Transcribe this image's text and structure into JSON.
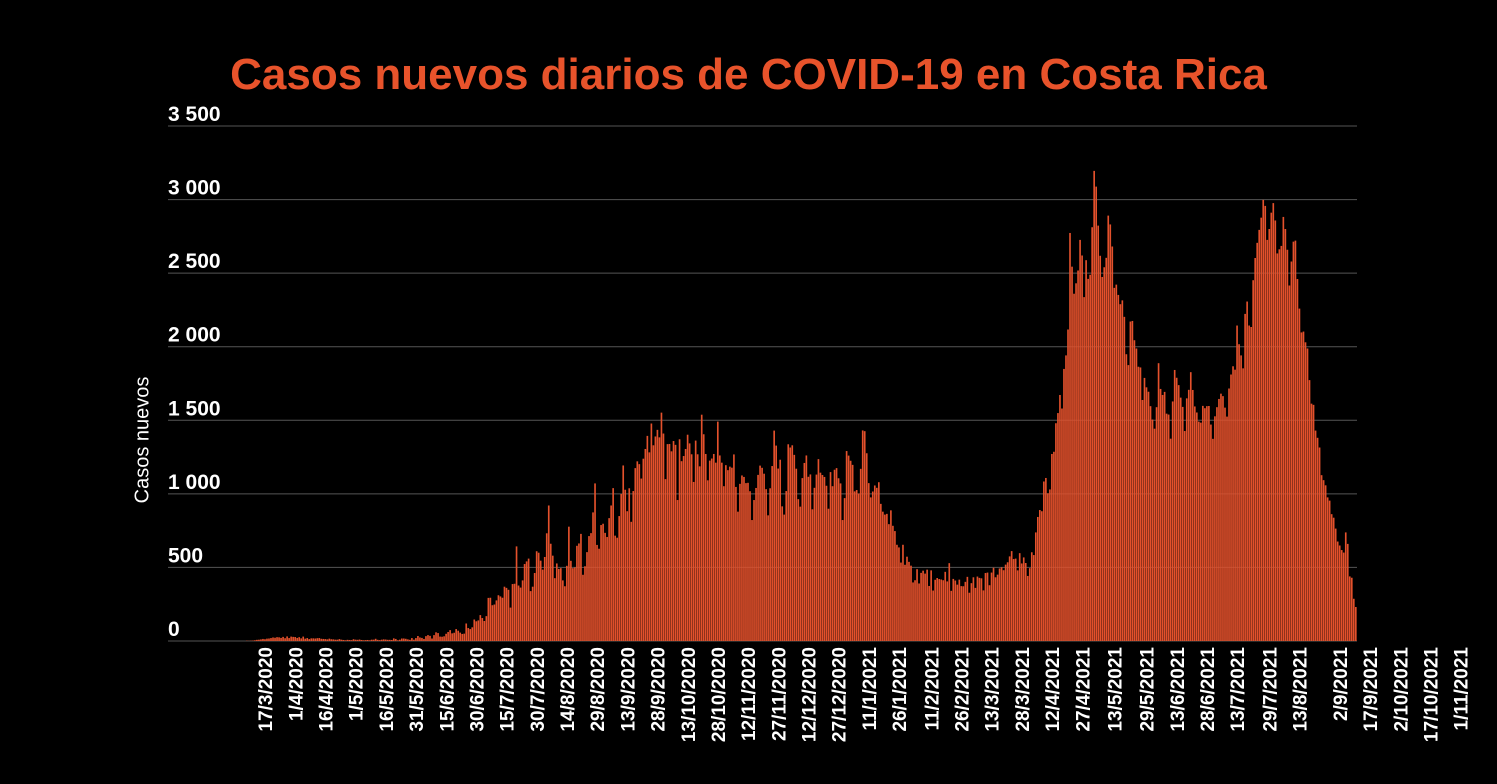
{
  "colors": {
    "background": "#000000",
    "accent": "#e8532b",
    "bar": "#e4512c",
    "grid": "#555555",
    "text": "#ffffff"
  },
  "chart_data": {
    "type": "bar",
    "title": "Casos nuevos diarios de COVID-19 en Costa Rica",
    "xlabel": "",
    "ylabel": "Casos nuevos",
    "ylim": [
      0,
      3500
    ],
    "y_ticks": [
      0,
      500,
      1000,
      1500,
      2000,
      2500,
      3000,
      3500
    ],
    "y_tick_labels": [
      "0",
      "500",
      "1 000",
      "1 500",
      "2 000",
      "2 500",
      "3 000",
      "3 500"
    ],
    "x_tick_labels": [
      "17/3/2020",
      "1/4/2020",
      "16/4/2020",
      "1/5/2020",
      "16/5/2020",
      "31/5/2020",
      "15/6/2020",
      "30/6/2020",
      "15/7/2020",
      "30/7/2020",
      "14/8/2020",
      "29/8/2020",
      "13/9/2020",
      "28/9/2020",
      "13/10/2020",
      "28/10/2020",
      "12/11/2020",
      "27/11/2020",
      "12/12/2020",
      "27/12/2020",
      "11/1/2021",
      "26/1/2021",
      "11/2/2021",
      "26/2/2021",
      "13/3/2021",
      "28/3/2021",
      "12/4/2021",
      "27/4/2021",
      "13/5/2021",
      "29/5/2021",
      "13/6/2021",
      "28/6/2021",
      "13/7/2021",
      "29/7/2021",
      "13/8/2021",
      "2/9/2021",
      "17/9/2021",
      "2/10/2021",
      "17/10/2021",
      "1/11/2021"
    ],
    "grid": true,
    "legend": "none",
    "series": [
      {
        "start_date": "2020-03-06",
        "end_date": "2021-11-03",
        "values": [
          0,
          0,
          2,
          1,
          2,
          3,
          5,
          8,
          9,
          11,
          14,
          12,
          16,
          17,
          20,
          24,
          22,
          26,
          25,
          21,
          28,
          19,
          31,
          20,
          30,
          28,
          27,
          21,
          26,
          18,
          30,
          16,
          20,
          13,
          18,
          18,
          17,
          19,
          20,
          15,
          14,
          13,
          11,
          16,
          12,
          11,
          9,
          9,
          13,
          9,
          7,
          5,
          8,
          7,
          6,
          12,
          9,
          8,
          10,
          7,
          5,
          6,
          7,
          5,
          9,
          9,
          15,
          8,
          6,
          9,
          11,
          10,
          8,
          8,
          7,
          18,
          14,
          5,
          9,
          17,
          17,
          15,
          11,
          8,
          20,
          9,
          20,
          34,
          24,
          21,
          14,
          33,
          40,
          35,
          17,
          40,
          59,
          54,
          30,
          29,
          32,
          49,
          61,
          74,
          52,
          56,
          81,
          70,
          57,
          48,
          50,
          119,
          88,
          81,
          93,
          146,
          134,
          140,
          176,
          156,
          136,
          169,
          293,
          294,
          243,
          248,
          276,
          311,
          303,
          294,
          369,
          361,
          348,
          227,
          387,
          389,
          643,
          377,
          363,
          412,
          523,
          541,
          560,
          339,
          369,
          462,
          610,
          600,
          546,
          485,
          571,
          732,
          921,
          661,
          580,
          427,
          527,
          490,
          495,
          412,
          372,
          511,
          777,
          545,
          495,
          500,
          647,
          663,
          728,
          450,
          508,
          604,
          713,
          733,
          874,
          1071,
          653,
          627,
          788,
          797,
          735,
          707,
          835,
          921,
          1039,
          716,
          702,
          849,
          999,
          1193,
          1028,
          882,
          1038,
          810,
          1019,
          1175,
          1221,
          1202,
          1104,
          1239,
          1305,
          1394,
          1282,
          1478,
          1330,
          1390,
          1435,
          1384,
          1552,
          1410,
          1100,
          1338,
          1339,
          1289,
          1359,
          1333,
          958,
          1371,
          1222,
          1257,
          1305,
          1402,
          1343,
          1269,
          1081,
          1362,
          1269,
          1187,
          1538,
          1405,
          1271,
          1092,
          1226,
          1240,
          1271,
          1212,
          1491,
          1261,
          1212,
          1052,
          1195,
          1161,
          1185,
          1178,
          1268,
          1047,
          879,
          1068,
          1125,
          1115,
          1073,
          1075,
          1018,
          822,
          958,
          1040,
          1129,
          1192,
          1177,
          1137,
          1032,
          854,
          1038,
          1189,
          1430,
          1328,
          1172,
          1232,
          915,
          859,
          1019,
          1337,
          1315,
          1330,
          1265,
          1171,
          964,
          913,
          1107,
          1210,
          1261,
          1116,
          1132,
          895,
          1041,
          1131,
          1236,
          1144,
          1128,
          1115,
          1055,
          899,
          1148,
          1052,
          1164,
          1175,
          1106,
          1071,
          822,
          971,
          1291,
          1260,
          1225,
          1197,
          1017,
          1026,
          1002,
          1170,
          1431,
          1426,
          1276,
          1073,
          976,
          1016,
          1057,
          1041,
          1079,
          932,
          879,
          859,
          864,
          794,
          888,
          783,
          747,
          654,
          636,
          533,
          654,
          518,
          573,
          538,
          512,
          398,
          413,
          488,
          391,
          463,
          478,
          458,
          485,
          374,
          480,
          343,
          416,
          428,
          421,
          418,
          413,
          470,
          405,
          529,
          341,
          422,
          411,
          383,
          417,
          373,
          372,
          402,
          436,
          328,
          393,
          433,
          361,
          438,
          429,
          426,
          344,
          462,
          465,
          379,
          465,
          498,
          433,
          451,
          493,
          501,
          481,
          519,
          535,
          575,
          611,
          557,
          560,
          480,
          597,
          527,
          568,
          530,
          442,
          495,
          603,
          584,
          738,
          843,
          890,
          882,
          1084,
          1108,
          1004,
          1030,
          1271,
          1286,
          1480,
          1549,
          1672,
          1580,
          1849,
          1941,
          2117,
          2773,
          2544,
          2360,
          2431,
          2518,
          2726,
          2620,
          2337,
          2588,
          2461,
          2489,
          2812,
          3195,
          3088,
          2823,
          2618,
          2474,
          2540,
          2604,
          2891,
          2831,
          2681,
          2400,
          2422,
          2352,
          2289,
          2315,
          2203,
          1949,
          1875,
          2171,
          2175,
          2044,
          1988,
          1864,
          1859,
          1638,
          1788,
          1724,
          1694,
          1596,
          1505,
          1443,
          1589,
          1888,
          1713,
          1672,
          1693,
          1545,
          1539,
          1375,
          1628,
          1842,
          1789,
          1739,
          1654,
          1591,
          1427,
          1649,
          1707,
          1827,
          1706,
          1594,
          1553,
          1491,
          1484,
          1598,
          1582,
          1596,
          1597,
          1471,
          1374,
          1527,
          1589,
          1645,
          1681,
          1664,
          1586,
          1525,
          1716,
          1811,
          1867,
          1844,
          2144,
          2017,
          1941,
          1853,
          2223,
          2307,
          2144,
          2134,
          2452,
          2603,
          2706,
          2794,
          2877,
          2998,
          2957,
          2726,
          2800,
          2911,
          2976,
          2858,
          2634,
          2662,
          2685,
          2882,
          2800,
          2659,
          2416,
          2579,
          2714,
          2721,
          2460,
          2259,
          2097,
          2103,
          2030,
          1988,
          1773,
          1613,
          1605,
          1430,
          1381,
          1315,
          1127,
          1093,
          1058,
          976,
          954,
          862,
          838,
          764,
          676,
          649,
          618,
          601,
          738,
          660,
          439,
          430,
          287,
          231
        ]
      }
    ]
  }
}
